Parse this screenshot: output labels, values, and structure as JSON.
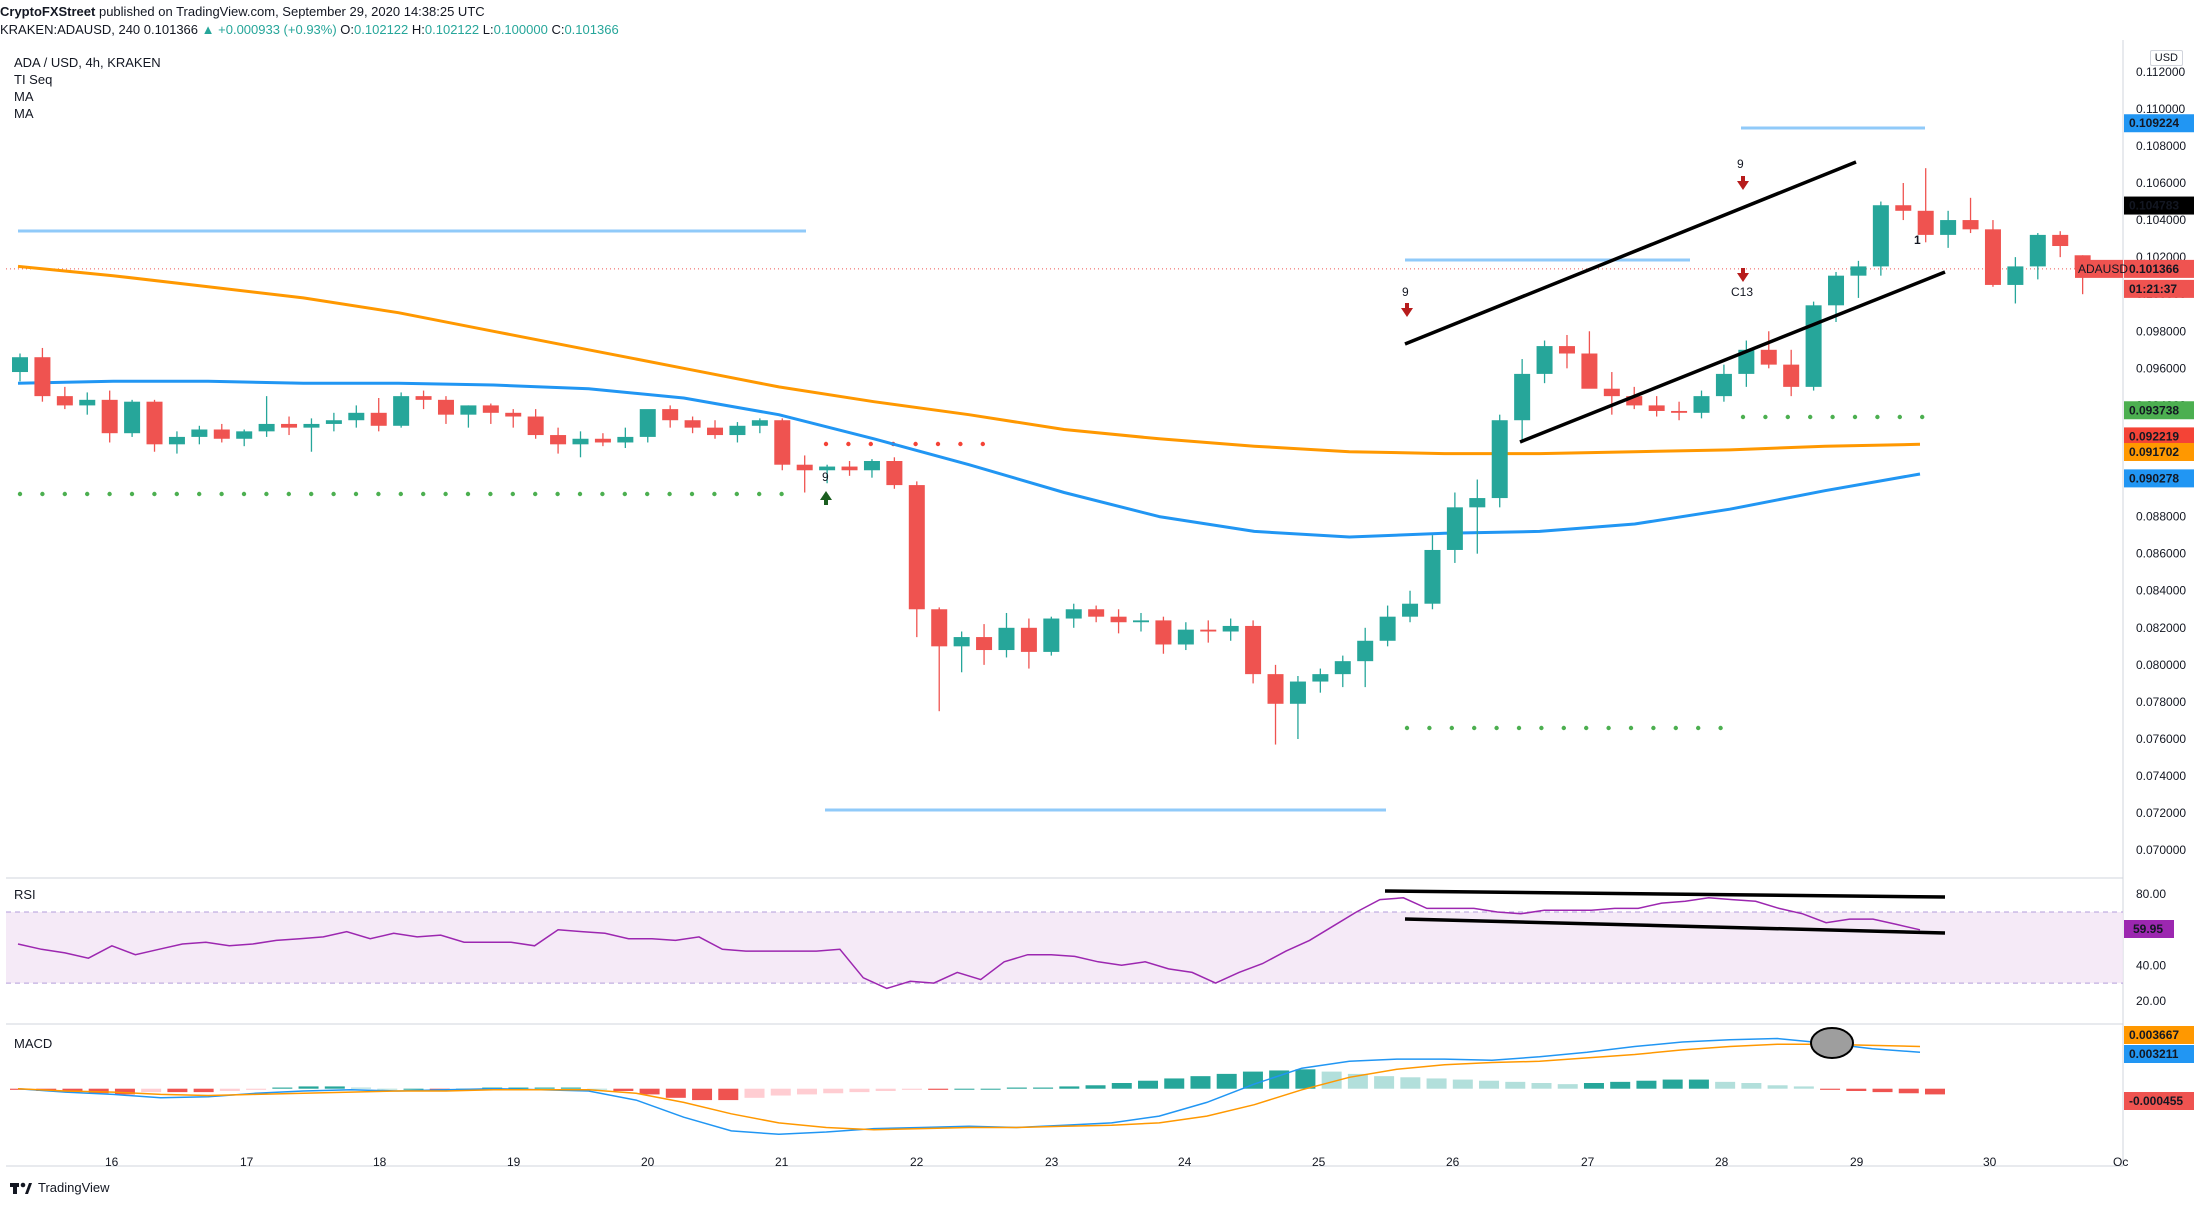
{
  "header": {
    "line1_user": "CryptoFXStreet",
    "line1_rest": " published on TradingView.com, September 29, 2020 14:38:25 UTC",
    "line2_symbol": "KRAKEN:ADAUSD, 240",
    "line2_price": "0.101366",
    "line2_change": "▲ +0.000933 (+0.93%)",
    "line2_ohlc_o_label": "O:",
    "line2_ohlc_o": "0.102122",
    "line2_ohlc_h_label": "H:",
    "line2_ohlc_h": "0.102122",
    "line2_ohlc_l_label": "L:",
    "line2_ohlc_l": "0.100000",
    "line2_ohlc_c_label": "C:",
    "line2_ohlc_c": "0.101366"
  },
  "legend": {
    "title": "ADA / USD, 4h, KRAKEN",
    "items": [
      "TI Seq",
      "MA",
      "MA"
    ]
  },
  "currency": "USD",
  "footer": {
    "brand": "TradingView"
  },
  "colors": {
    "up": "#26a69a",
    "down": "#ef5350",
    "ma_fast": "#2196f3",
    "ma_slow": "#ff9800",
    "rsi": "#9c27b0",
    "rsi_band": "#f3e5f5",
    "hline": "#90caf9",
    "dots": "#4caf50",
    "red_dots": "#f44336"
  },
  "chart_data": [
    {
      "type": "candlestick",
      "title": "ADA / USD, 4h, KRAKEN",
      "ylim": [
        0.0685,
        0.1135
      ],
      "y_ticks": [
        "0.112000",
        "0.110000",
        "0.108000",
        "0.106000",
        "0.104000",
        "0.102000",
        "0.100000",
        "0.098000",
        "0.096000",
        "0.094000",
        "0.092000",
        "0.090000",
        "0.088000",
        "0.086000",
        "0.084000",
        "0.082000",
        "0.080000",
        "0.078000",
        "0.076000",
        "0.074000",
        "0.072000",
        "0.070000"
      ],
      "x_ticks": [
        "16",
        "17",
        "18",
        "19",
        "20",
        "21",
        "22",
        "23",
        "24",
        "25",
        "26",
        "27",
        "28",
        "29",
        "30",
        "Oc"
      ],
      "candles_ohlc": [
        [
          0.0958,
          0.0968,
          0.0953,
          0.0966
        ],
        [
          0.0966,
          0.0971,
          0.0942,
          0.0945
        ],
        [
          0.0945,
          0.095,
          0.0938,
          0.094
        ],
        [
          0.094,
          0.0947,
          0.0935,
          0.0943
        ],
        [
          0.0943,
          0.0948,
          0.092,
          0.0925
        ],
        [
          0.0925,
          0.0943,
          0.0923,
          0.0942
        ],
        [
          0.0942,
          0.0943,
          0.0915,
          0.0919
        ],
        [
          0.0919,
          0.0926,
          0.0914,
          0.0923
        ],
        [
          0.0923,
          0.0929,
          0.0919,
          0.0927
        ],
        [
          0.0927,
          0.093,
          0.092,
          0.0922
        ],
        [
          0.0922,
          0.0927,
          0.0918,
          0.0926
        ],
        [
          0.0926,
          0.0945,
          0.0923,
          0.093
        ],
        [
          0.093,
          0.0934,
          0.0924,
          0.0928
        ],
        [
          0.0928,
          0.0933,
          0.0915,
          0.093
        ],
        [
          0.093,
          0.0936,
          0.0926,
          0.0932
        ],
        [
          0.0932,
          0.094,
          0.0928,
          0.0936
        ],
        [
          0.0936,
          0.0944,
          0.0926,
          0.0929
        ],
        [
          0.0929,
          0.0947,
          0.0928,
          0.0945
        ],
        [
          0.0945,
          0.0948,
          0.0938,
          0.0943
        ],
        [
          0.0943,
          0.0945,
          0.093,
          0.0935
        ],
        [
          0.0935,
          0.094,
          0.0928,
          0.094
        ],
        [
          0.094,
          0.0941,
          0.093,
          0.0936
        ],
        [
          0.0936,
          0.0938,
          0.0928,
          0.0934
        ],
        [
          0.0934,
          0.0938,
          0.0922,
          0.0924
        ],
        [
          0.0924,
          0.0928,
          0.0914,
          0.0919
        ],
        [
          0.0919,
          0.0926,
          0.0912,
          0.0922
        ],
        [
          0.0922,
          0.0925,
          0.0918,
          0.092
        ],
        [
          0.092,
          0.0928,
          0.0917,
          0.0923
        ],
        [
          0.0923,
          0.0935,
          0.092,
          0.0938
        ],
        [
          0.0938,
          0.094,
          0.0928,
          0.0932
        ],
        [
          0.0932,
          0.0934,
          0.0925,
          0.0928
        ],
        [
          0.0928,
          0.0932,
          0.0922,
          0.0924
        ],
        [
          0.0924,
          0.0931,
          0.092,
          0.0929
        ],
        [
          0.0929,
          0.0933,
          0.0925,
          0.0932
        ],
        [
          0.0932,
          0.0933,
          0.0905,
          0.0908
        ],
        [
          0.0908,
          0.0913,
          0.0893,
          0.0905
        ],
        [
          0.0905,
          0.0908,
          0.0898,
          0.0907
        ],
        [
          0.0907,
          0.091,
          0.0902,
          0.0905
        ],
        [
          0.0905,
          0.0911,
          0.0901,
          0.091
        ],
        [
          0.091,
          0.0912,
          0.0895,
          0.0897
        ],
        [
          0.0897,
          0.0899,
          0.0815,
          0.083
        ],
        [
          0.083,
          0.0831,
          0.0775,
          0.081
        ],
        [
          0.081,
          0.0818,
          0.0796,
          0.0815
        ],
        [
          0.0815,
          0.0822,
          0.08,
          0.0808
        ],
        [
          0.0808,
          0.0828,
          0.0804,
          0.082
        ],
        [
          0.082,
          0.0825,
          0.0798,
          0.0807
        ],
        [
          0.0807,
          0.0826,
          0.0805,
          0.0825
        ],
        [
          0.0825,
          0.0833,
          0.082,
          0.083
        ],
        [
          0.083,
          0.0832,
          0.0823,
          0.0826
        ],
        [
          0.0826,
          0.083,
          0.0817,
          0.0823
        ],
        [
          0.0823,
          0.0828,
          0.0818,
          0.0824
        ],
        [
          0.0824,
          0.0826,
          0.0806,
          0.0811
        ],
        [
          0.0811,
          0.0823,
          0.0808,
          0.0819
        ],
        [
          0.0819,
          0.0824,
          0.0812,
          0.0818
        ],
        [
          0.0818,
          0.0825,
          0.0813,
          0.0821
        ],
        [
          0.0821,
          0.0824,
          0.079,
          0.0795
        ],
        [
          0.0795,
          0.08,
          0.0757,
          0.0779
        ],
        [
          0.0779,
          0.0794,
          0.076,
          0.0791
        ],
        [
          0.0791,
          0.0798,
          0.0785,
          0.0795
        ],
        [
          0.0795,
          0.0805,
          0.0788,
          0.0802
        ],
        [
          0.0802,
          0.082,
          0.0788,
          0.0813
        ],
        [
          0.0813,
          0.0832,
          0.081,
          0.0826
        ],
        [
          0.0826,
          0.084,
          0.0823,
          0.0833
        ],
        [
          0.0833,
          0.087,
          0.083,
          0.0862
        ],
        [
          0.0862,
          0.0893,
          0.0855,
          0.0885
        ],
        [
          0.0885,
          0.09,
          0.086,
          0.089
        ],
        [
          0.089,
          0.0935,
          0.0885,
          0.0932
        ],
        [
          0.0932,
          0.0965,
          0.092,
          0.0957
        ],
        [
          0.0957,
          0.0975,
          0.0952,
          0.0972
        ],
        [
          0.0972,
          0.0978,
          0.096,
          0.0968
        ],
        [
          0.0968,
          0.098,
          0.0952,
          0.0949
        ],
        [
          0.0949,
          0.0958,
          0.0935,
          0.0945
        ],
        [
          0.0945,
          0.095,
          0.0938,
          0.094
        ],
        [
          0.094,
          0.0945,
          0.0934,
          0.0937
        ],
        [
          0.0937,
          0.0942,
          0.0932,
          0.0936
        ],
        [
          0.0936,
          0.0948,
          0.0933,
          0.0945
        ],
        [
          0.0945,
          0.0962,
          0.0942,
          0.0957
        ],
        [
          0.0957,
          0.0975,
          0.095,
          0.097
        ],
        [
          0.097,
          0.098,
          0.096,
          0.0962
        ],
        [
          0.0962,
          0.097,
          0.0945,
          0.095
        ],
        [
          0.095,
          0.0996,
          0.0948,
          0.0994
        ],
        [
          0.0994,
          0.1012,
          0.0985,
          0.101
        ],
        [
          0.101,
          0.1018,
          0.0998,
          0.1015
        ],
        [
          0.1015,
          0.105,
          0.101,
          0.1048
        ],
        [
          0.1048,
          0.106,
          0.104,
          0.1045
        ],
        [
          0.1045,
          0.1068,
          0.1028,
          0.1032
        ],
        [
          0.1032,
          0.1045,
          0.1025,
          0.104
        ],
        [
          0.104,
          0.1052,
          0.1033,
          0.1035
        ],
        [
          0.1035,
          0.104,
          0.1004,
          0.1005
        ],
        [
          0.1005,
          0.102,
          0.0995,
          0.1015
        ],
        [
          0.1015,
          0.1033,
          0.1008,
          0.1032
        ],
        [
          0.1032,
          0.1034,
          0.102,
          0.1026
        ],
        [
          0.1021,
          0.1021,
          0.1,
          0.10137
        ]
      ],
      "ma_fast": [
        0.0952,
        0.0953,
        0.0953,
        0.0952,
        0.0952,
        0.0951,
        0.0949,
        0.0944,
        0.0935,
        0.0922,
        0.0908,
        0.0893,
        0.088,
        0.0872,
        0.0869,
        0.0871,
        0.0872,
        0.0876,
        0.0884,
        0.0894,
        0.0903
      ],
      "ma_slow": [
        0.1015,
        0.101,
        0.1004,
        0.0998,
        0.099,
        0.098,
        0.097,
        0.096,
        0.095,
        0.0942,
        0.0935,
        0.0927,
        0.0922,
        0.0918,
        0.0915,
        0.0914,
        0.0914,
        0.0915,
        0.0916,
        0.0918,
        0.0919
      ],
      "price_tags": [
        "0.109224",
        "0.104783",
        "0.101366",
        "01:21:37",
        "0.093738",
        "0.092219",
        "0.091702",
        "0.090278"
      ],
      "price_tag_label": "ADAUSD",
      "annotations": [
        "9",
        "9",
        "9",
        "C13",
        "1"
      ]
    },
    {
      "type": "line",
      "title": "RSI",
      "ylim": [
        7,
        88
      ],
      "y_ticks": [
        "80.00",
        "40.00",
        "20.00"
      ],
      "current": "59.95",
      "values": [
        52,
        49,
        47,
        44,
        51,
        46,
        49,
        52,
        53,
        51,
        52,
        54,
        55,
        56,
        59,
        55,
        58,
        56,
        57,
        53,
        53,
        53,
        51,
        60,
        59,
        58,
        55,
        55,
        54,
        56,
        49,
        48,
        48,
        48,
        48,
        49,
        33,
        27,
        31,
        30,
        36,
        32,
        42,
        46,
        46,
        45,
        42,
        40,
        42,
        38,
        36,
        30,
        36,
        41,
        48,
        54,
        62,
        70,
        77,
        78,
        72,
        72,
        72,
        70,
        69,
        71,
        71,
        71,
        72,
        72,
        75,
        76,
        78,
        77,
        76,
        72,
        69,
        64,
        66,
        66,
        63,
        60
      ]
    },
    {
      "type": "bar",
      "title": "MACD",
      "ylim": [
        -0.0045,
        0.0055
      ],
      "values_current": [
        "0.003667",
        "0.003211",
        "-0.000455"
      ],
      "histogram": [
        -0.0001,
        -0.0002,
        -0.0003,
        -0.0004,
        -0.0005,
        -0.0003,
        -0.0003,
        -0.0003,
        -0.0002,
        -0.0001,
        0.0001,
        0.0002,
        0.0002,
        0.0001,
        0.0,
        0.0,
        -0.0001,
        0.0,
        0.0001,
        0.0001,
        0.0001,
        0.0001,
        0.0,
        -0.0002,
        -0.0005,
        -0.0008,
        -0.001,
        -0.001,
        -0.0008,
        -0.0006,
        -0.0005,
        -0.0004,
        -0.0003,
        -0.0002,
        -0.0001,
        -0.0001,
        0.0,
        0.0,
        0.0001,
        0.0001,
        0.0002,
        0.0003,
        0.0005,
        0.0007,
        0.0009,
        0.0011,
        0.0013,
        0.0015,
        0.0016,
        0.0017,
        0.0015,
        0.0013,
        0.0011,
        0.001,
        0.0009,
        0.0008,
        0.0007,
        0.0006,
        0.0005,
        0.0004,
        0.0005,
        0.0006,
        0.0007,
        0.0008,
        0.0008,
        0.0006,
        0.0005,
        0.0003,
        0.0002,
        -0.0001,
        -0.0002,
        -0.0003,
        -0.0004,
        -0.0005
      ],
      "macd_line": [
        0.0,
        -0.0003,
        -0.0005,
        -0.0008,
        -0.0007,
        -0.0004,
        -0.0002,
        -0.0001,
        -0.0002,
        -0.0001,
        0.0,
        -0.0001,
        -0.0002,
        -0.001,
        -0.0025,
        -0.0037,
        -0.004,
        -0.0038,
        -0.0035,
        -0.0034,
        -0.0033,
        -0.0034,
        -0.0032,
        -0.003,
        -0.0024,
        -0.0012,
        0.0004,
        0.0018,
        0.0024,
        0.0026,
        0.0026,
        0.0025,
        0.0028,
        0.0032,
        0.0037,
        0.0041,
        0.0043,
        0.0044,
        0.004,
        0.0035,
        0.0032
      ],
      "signal_line": [
        0.0,
        -0.0002,
        -0.0003,
        -0.0005,
        -0.0006,
        -0.0005,
        -0.0004,
        -0.0003,
        -0.0002,
        -0.0002,
        -0.0001,
        -0.0001,
        -0.0001,
        -0.0004,
        -0.0012,
        -0.0022,
        -0.003,
        -0.0034,
        -0.0036,
        -0.0035,
        -0.0034,
        -0.0034,
        -0.0033,
        -0.0032,
        -0.003,
        -0.0024,
        -0.0014,
        -0.0001,
        0.001,
        0.0017,
        0.0021,
        0.0023,
        0.0024,
        0.0027,
        0.003,
        0.0034,
        0.0037,
        0.0039,
        0.0039,
        0.0038,
        0.0037
      ]
    }
  ]
}
